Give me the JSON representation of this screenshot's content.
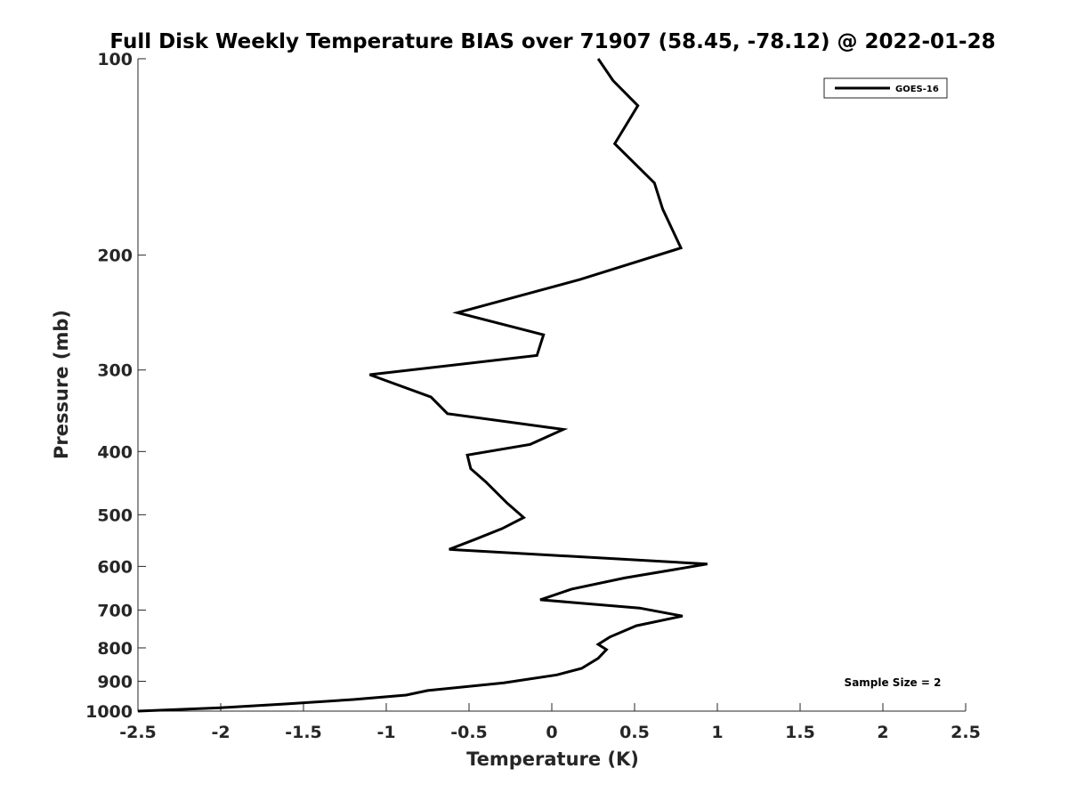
{
  "chart_data": {
    "type": "line",
    "title": "Full Disk Weekly Temperature BIAS over 71907 (58.45, -78.12) @ 2022-01-28",
    "xlabel": "Temperature (K)",
    "ylabel": "Pressure (mb)",
    "xlim": [
      -2.5,
      2.5
    ],
    "ylim": [
      1000,
      100
    ],
    "yscale": "log",
    "y_reversed": true,
    "grid": false,
    "legend_position": "top-right",
    "x_ticks": [
      "-2.5",
      "-2",
      "-1.5",
      "-1",
      "-0.5",
      "0",
      "0.5",
      "1",
      "1.5",
      "2",
      "2.5"
    ],
    "x_tick_values": [
      -2.5,
      -2,
      -1.5,
      -1,
      -0.5,
      0,
      0.5,
      1,
      1.5,
      2,
      2.5
    ],
    "y_ticks": [
      "100",
      "200",
      "300",
      "400",
      "500",
      "600",
      "700",
      "800",
      "900",
      "1000"
    ],
    "y_tick_values": [
      100,
      200,
      300,
      400,
      500,
      600,
      700,
      800,
      900,
      1000
    ],
    "annotation": "Sample Size = 2",
    "series": [
      {
        "name": "GOES-16",
        "color": "#000000",
        "x": [
          0.28,
          0.37,
          0.52,
          0.38,
          0.62,
          0.67,
          0.78,
          0.17,
          -0.57,
          -0.05,
          -0.09,
          -1.1,
          -0.73,
          -0.63,
          0.07,
          -0.13,
          -0.51,
          -0.49,
          -0.4,
          -0.27,
          -0.17,
          -0.3,
          -0.46,
          -0.62,
          0.94,
          0.44,
          0.12,
          -0.07,
          0.53,
          0.79,
          0.51,
          0.35,
          0.28,
          0.33,
          0.28,
          0.18,
          0.03,
          -0.29,
          -0.75,
          -0.88,
          -1.2,
          -1.6,
          -2.0,
          -2.5
        ],
        "y": [
          100,
          108,
          118,
          135,
          155,
          170,
          195,
          218,
          245,
          265,
          285,
          305,
          330,
          350,
          370,
          390,
          405,
          425,
          445,
          480,
          505,
          525,
          545,
          565,
          595,
          625,
          650,
          675,
          695,
          715,
          740,
          770,
          790,
          805,
          830,
          860,
          880,
          905,
          930,
          945,
          960,
          975,
          988,
          1000
        ]
      }
    ]
  }
}
